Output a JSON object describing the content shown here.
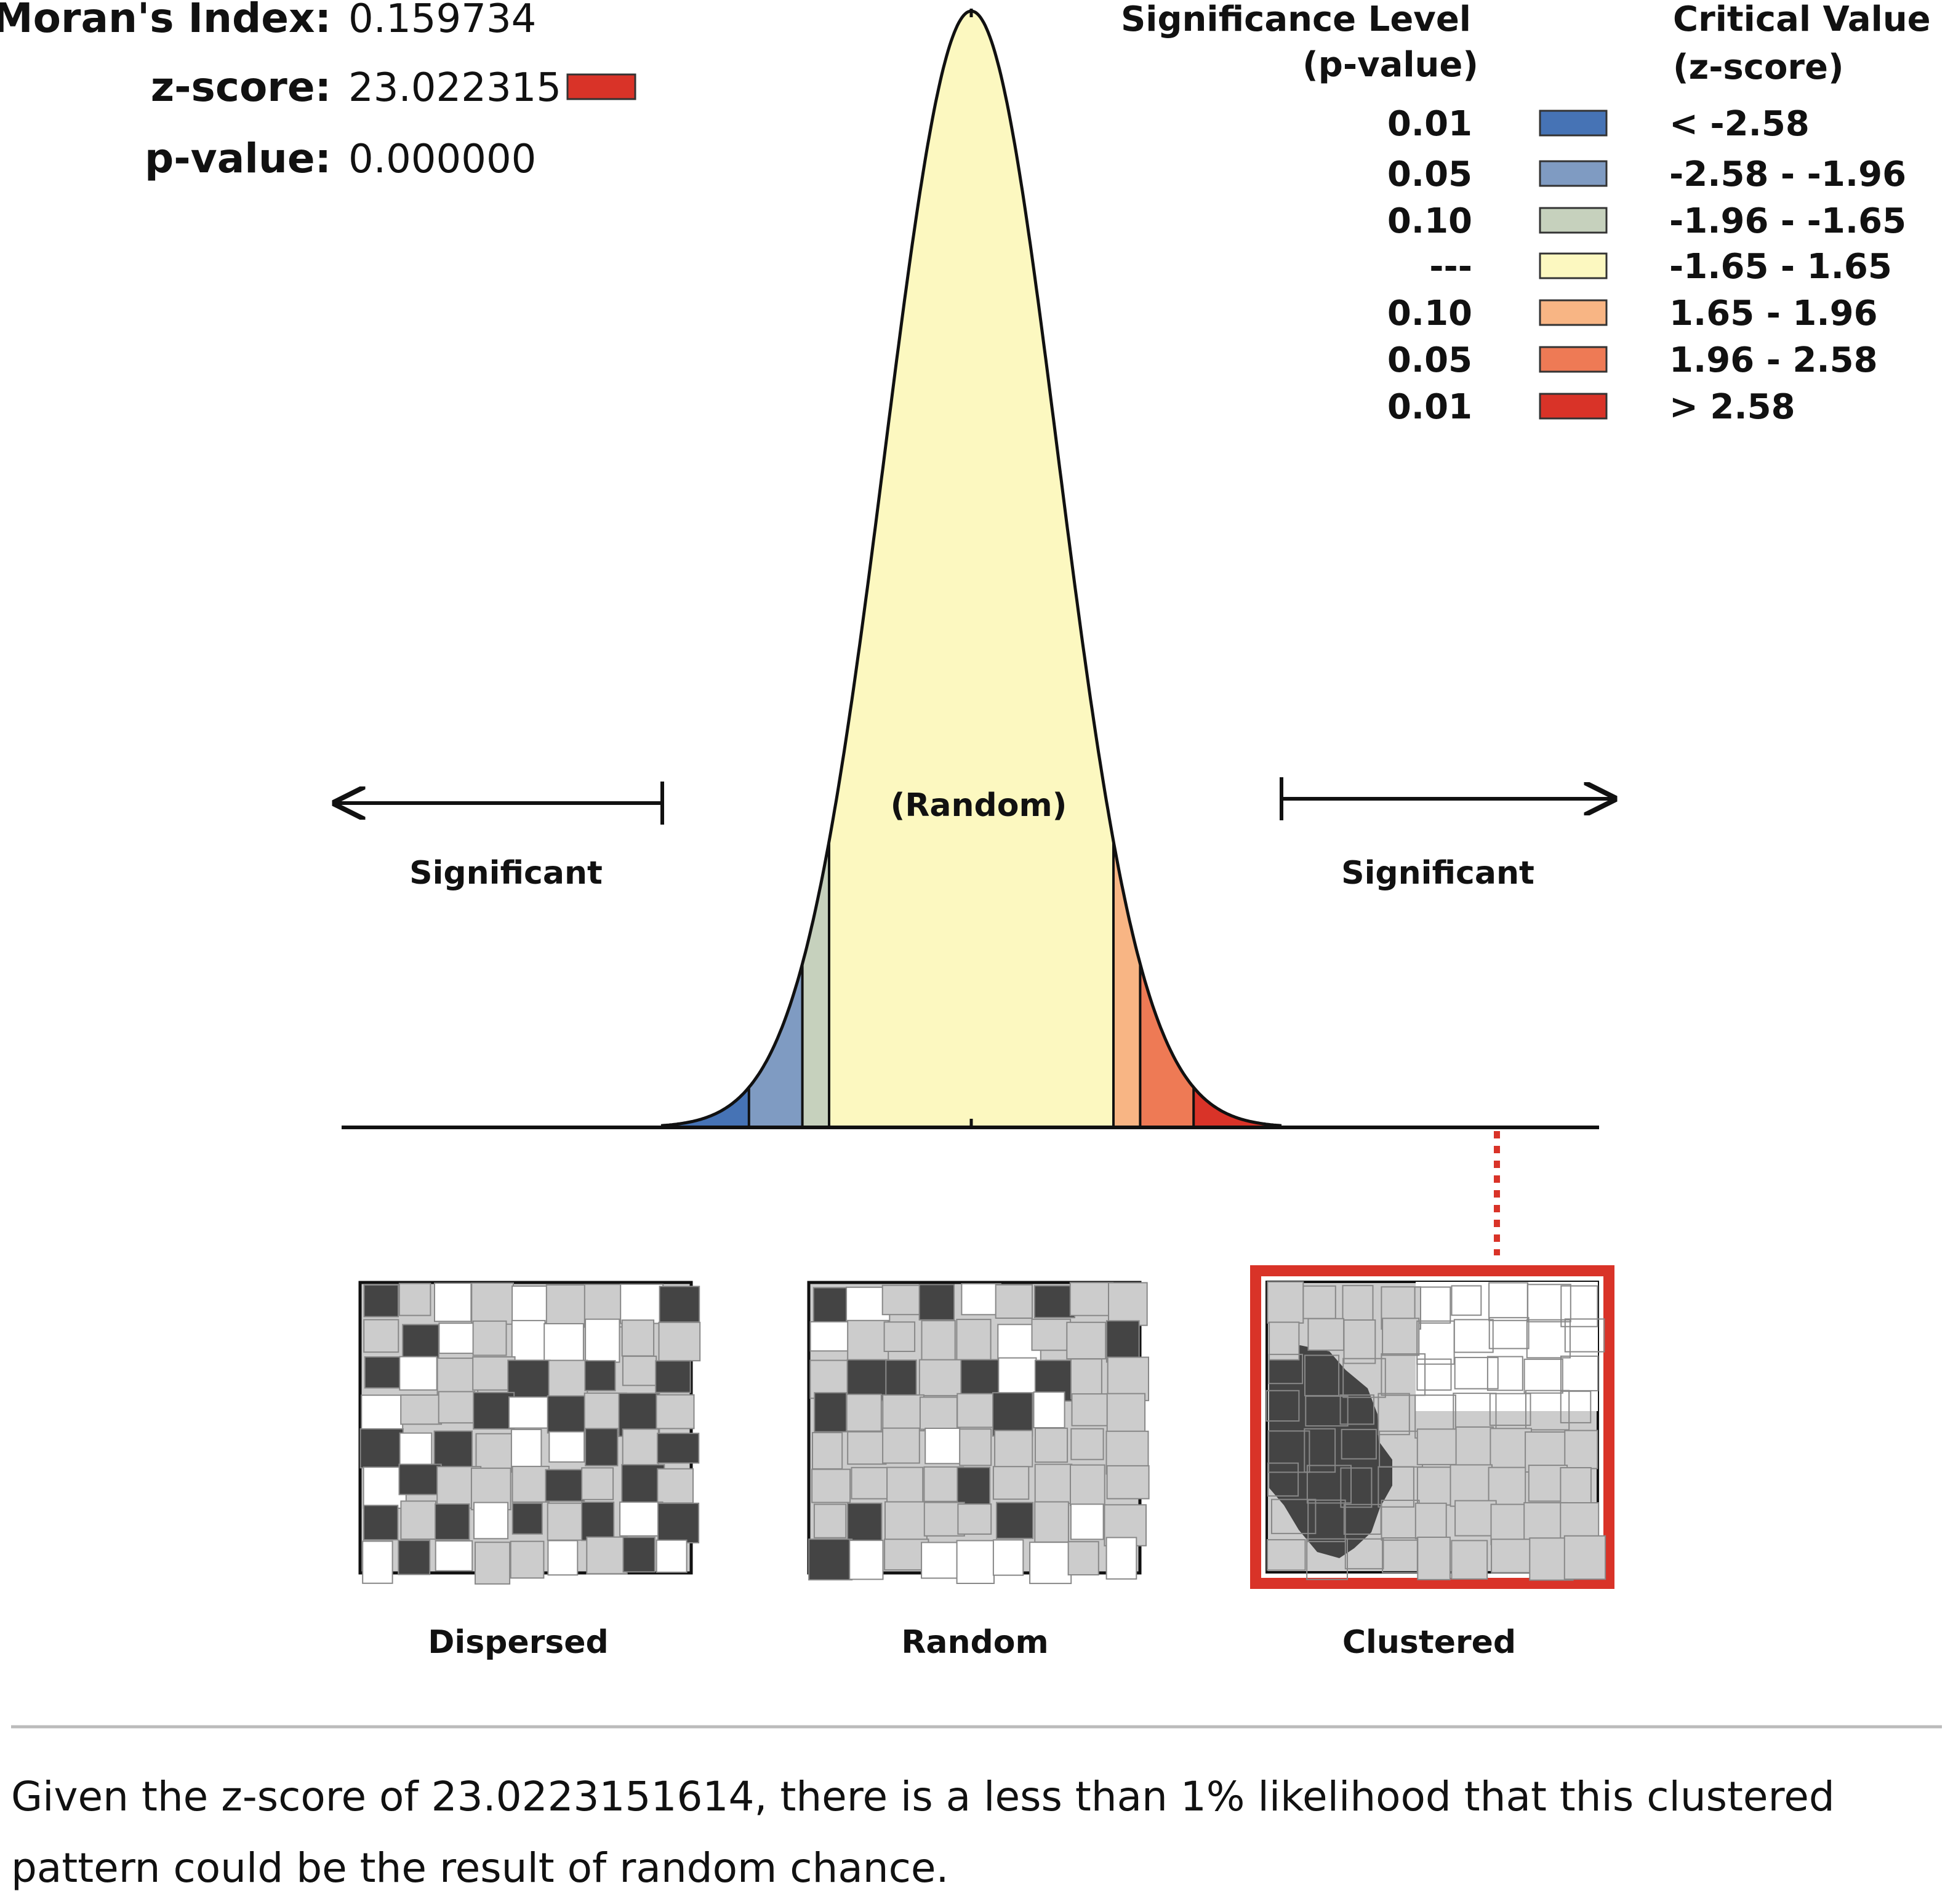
{
  "stats": {
    "moran_label": "Moran's Index:",
    "moran_value": "0.159734",
    "z_label": "z-score:",
    "z_value": "23.022315",
    "z_swatch_color": "#d93328",
    "p_label": "p-value:",
    "p_value": "0.000000"
  },
  "legend": {
    "significance_header_line1": "Significance Level",
    "significance_header_line2": "(p-value)",
    "critical_header_line1": "Critical Value",
    "critical_header_line2": "(z-score)",
    "rows": [
      {
        "p": "0.01",
        "z": "< -2.58",
        "color": "#4673b5"
      },
      {
        "p": "0.05",
        "z": "-2.58 - -1.96",
        "color": "#7f9bc2"
      },
      {
        "p": "0.10",
        "z": "-1.96 - -1.65",
        "color": "#c6d1bd"
      },
      {
        "p": "---",
        "z": "-1.65 - 1.65",
        "color": "#fcf8c0"
      },
      {
        "p": "0.10",
        "z": "1.65 - 1.96",
        "color": "#f8b584"
      },
      {
        "p": "0.05",
        "z": "1.96 - 2.58",
        "color": "#ee7a55"
      },
      {
        "p": "0.01",
        "z": "> 2.58",
        "color": "#d93328"
      }
    ]
  },
  "curve": {
    "center_label": "(Random)",
    "left_label": "Significant",
    "right_label": "Significant",
    "observed_z": 23.022315
  },
  "patterns": {
    "dispersed": "Dispersed",
    "random": "Random",
    "clustered": "Clustered",
    "highlight_color": "#d93328",
    "dark_fill": "#444444",
    "gray_fill": "#cccccc"
  },
  "conclusion": {
    "line1": "Given the z-score of 23.0223151614, there is a less than 1% likelihood that this clustered",
    "line2": "pattern could be the result of random chance."
  }
}
